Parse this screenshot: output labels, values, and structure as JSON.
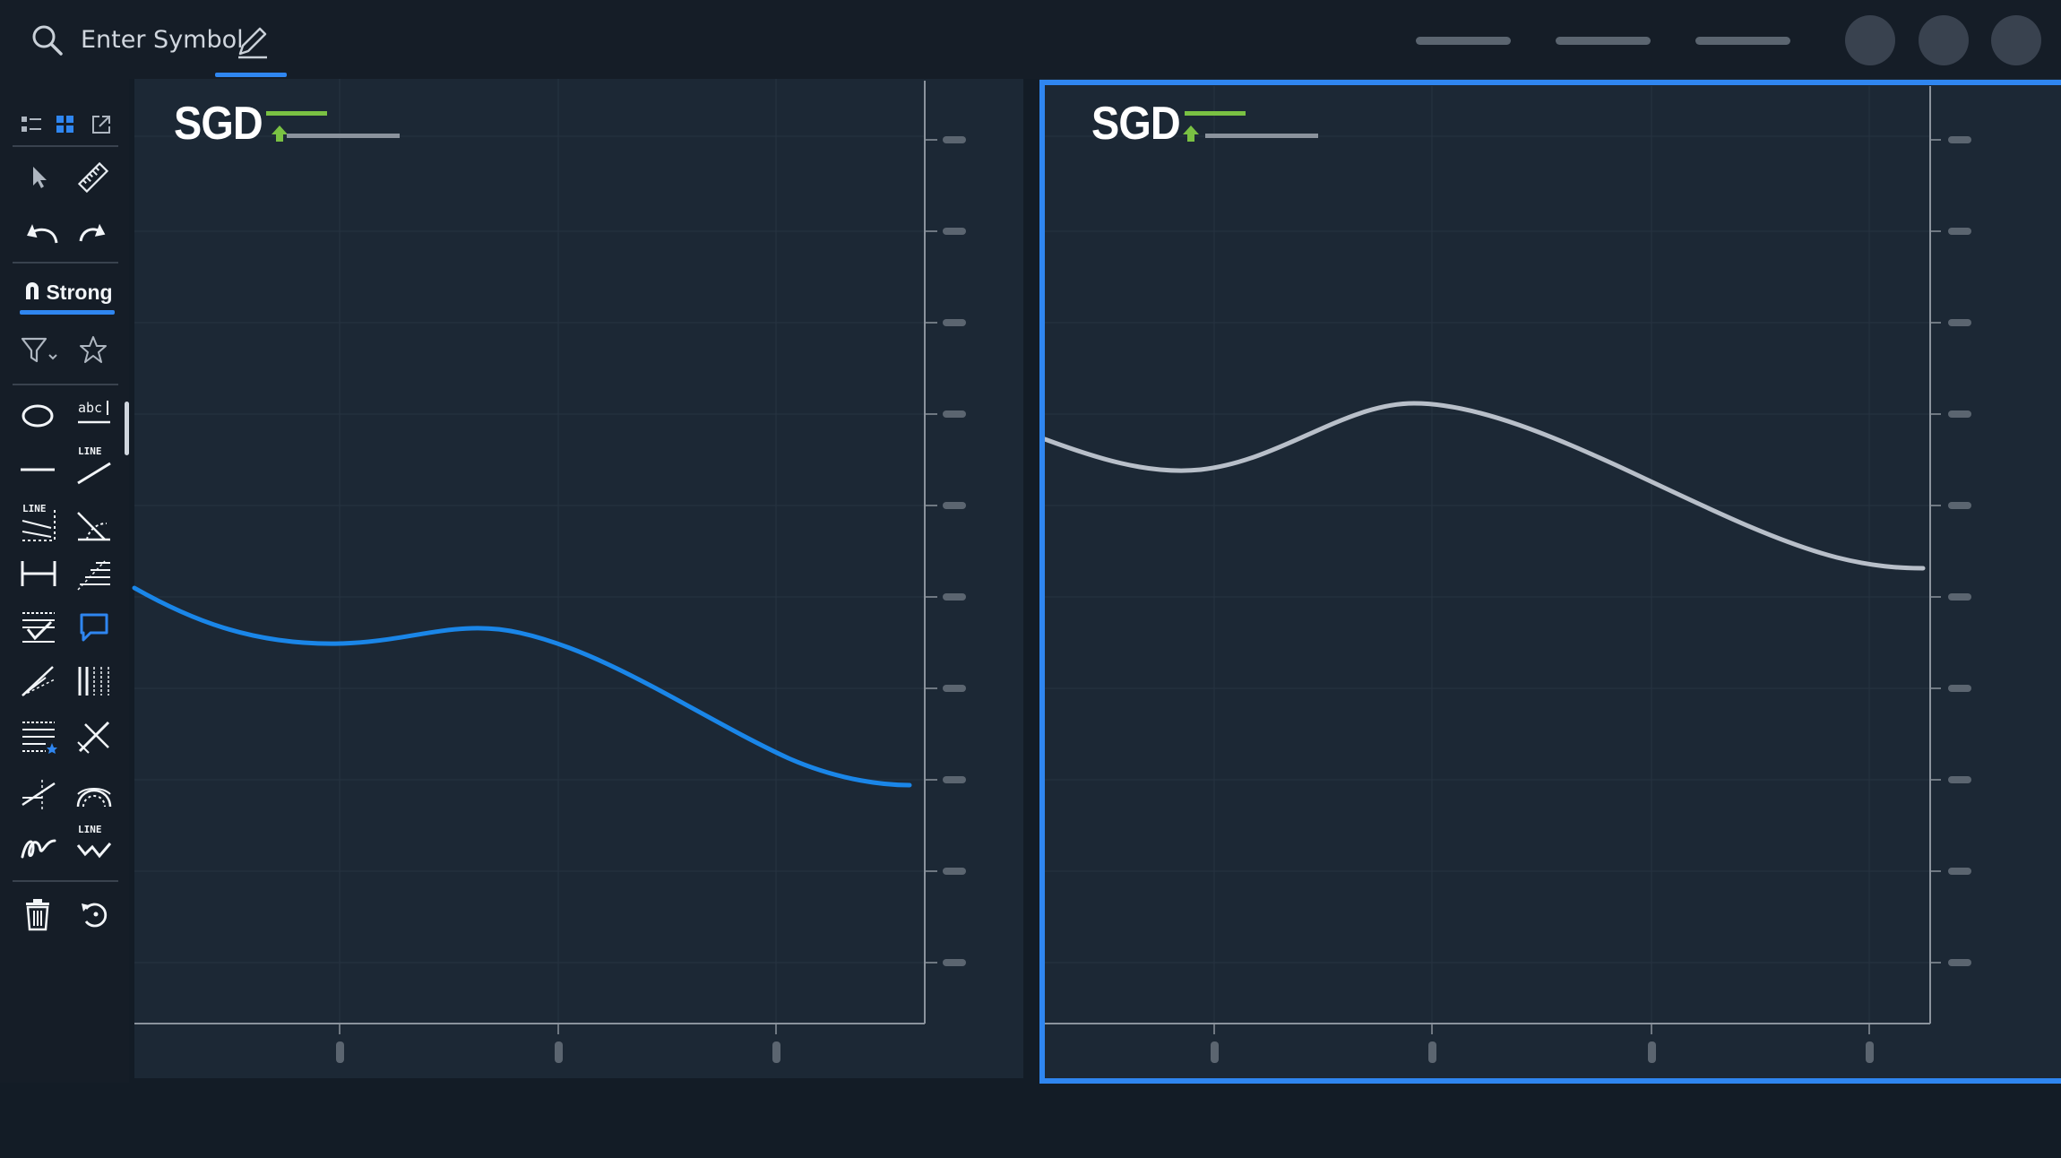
{
  "topbar": {
    "search_placeholder": "Enter Symbol",
    "icons": [
      "search-icon",
      "pencil-icon"
    ],
    "menu_pill_count": 3,
    "avatar_count": 3
  },
  "toolbar": {
    "magnet_label": "Strong",
    "text_tool_glyph": "abc",
    "line_tag": "LINE",
    "accent_color": "#2f86f0"
  },
  "charts": [
    {
      "symbol": "SGD",
      "line_color": "#1a86e8",
      "selected": false
    },
    {
      "symbol": "SGD",
      "line_color": "#b8bfc9",
      "selected": true
    }
  ],
  "colors": {
    "background": "#131c26",
    "pane": "#1c2835",
    "grid": "#2a3744",
    "axis": "#8b939d",
    "tick": "#5b6570",
    "up_indicator": "#7ac143",
    "selection": "#2f86f0"
  }
}
